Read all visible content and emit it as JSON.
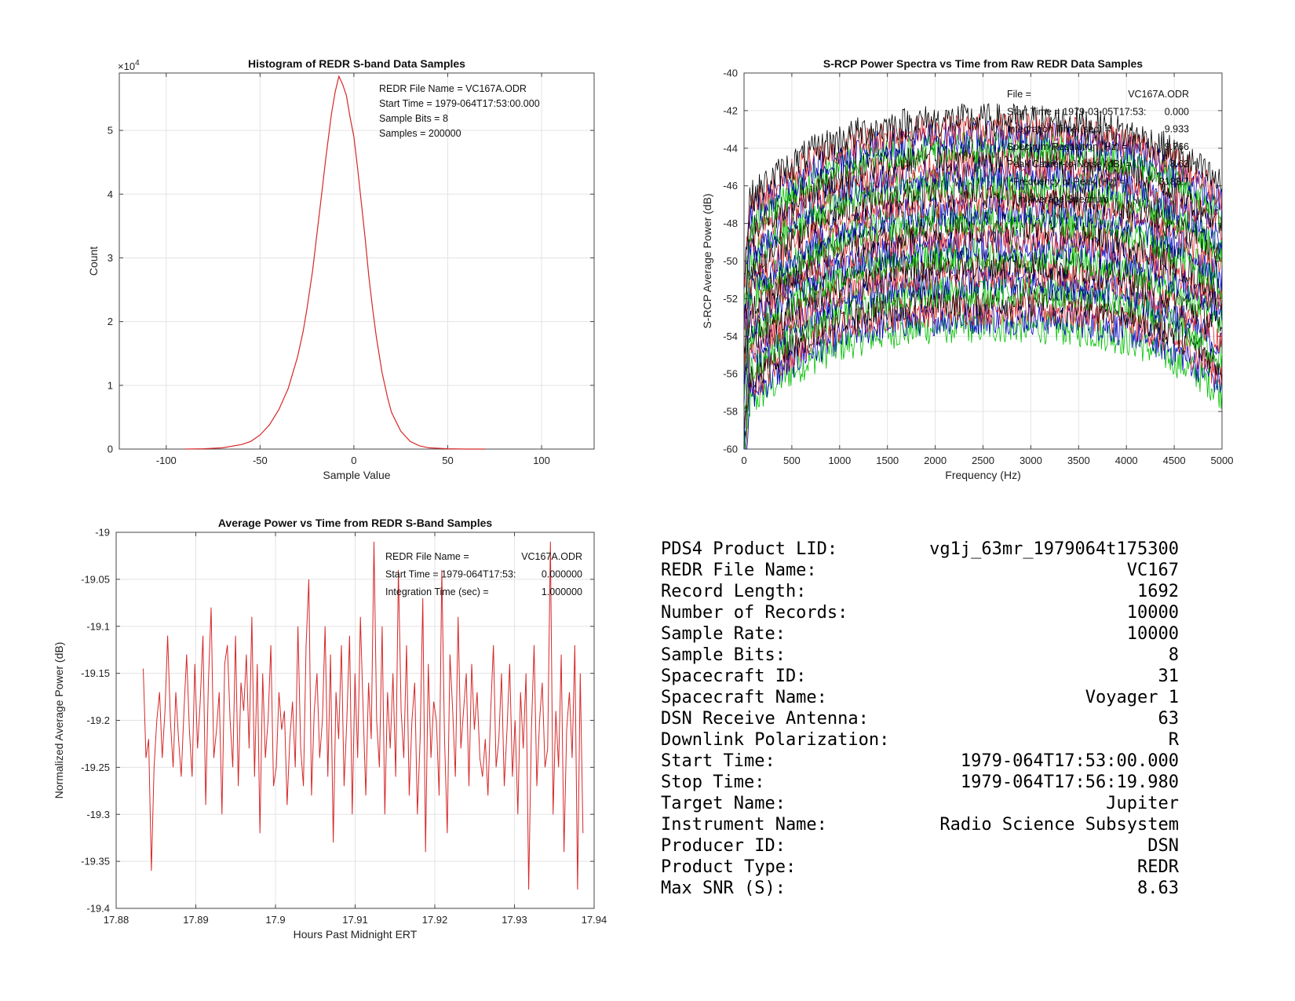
{
  "chart_data": [
    {
      "type": "line",
      "title": "Histogram of REDR S-band Data Samples",
      "xlabel": "Sample Value",
      "ylabel": "Count",
      "exponent_label": "×10",
      "exponent_power": "4",
      "xlim": [
        -125,
        128
      ],
      "ylim": [
        0,
        5.9
      ],
      "xticks": [
        -100,
        -50,
        0,
        50,
        100
      ],
      "yticks": [
        0,
        1,
        2,
        3,
        4,
        5
      ],
      "grid": true,
      "series": [
        {
          "color": "#d62728",
          "x": [
            -90,
            -80,
            -70,
            -60,
            -55,
            -50,
            -45,
            -40,
            -35,
            -30,
            -27,
            -25,
            -22,
            -20,
            -17,
            -15,
            -12,
            -10,
            -8,
            -6,
            -4,
            -2,
            0,
            2,
            4,
            6,
            8,
            10,
            12,
            15,
            18,
            20,
            25,
            30,
            35,
            40,
            50,
            60,
            70
          ],
          "y": [
            0.0,
            0.005,
            0.02,
            0.07,
            0.12,
            0.22,
            0.38,
            0.62,
            0.95,
            1.45,
            1.85,
            2.2,
            2.8,
            3.3,
            4.05,
            4.55,
            5.25,
            5.6,
            5.85,
            5.72,
            5.55,
            5.2,
            4.9,
            4.4,
            3.85,
            3.3,
            2.7,
            2.2,
            1.75,
            1.2,
            0.8,
            0.58,
            0.28,
            0.12,
            0.05,
            0.02,
            0.005,
            0.0,
            0.0
          ]
        }
      ],
      "annotations": [
        "REDR File Name = VC167A.ODR",
        "Start Time = 1979-064T17:53:00.000",
        "Sample Bits = 8",
        "Samples = 200000"
      ]
    },
    {
      "type": "line",
      "title": "S-RCP Power Spectra vs Time from Raw REDR Data Samples",
      "xlabel": "Frequency (Hz)",
      "ylabel": "S-RCP Average Power (dB)",
      "xlim": [
        0,
        5000
      ],
      "ylim": [
        -60,
        -40
      ],
      "xticks": [
        0,
        500,
        1000,
        1500,
        2000,
        2500,
        3000,
        3500,
        4000,
        4500,
        5000
      ],
      "yticks": [
        -60,
        -58,
        -56,
        -54,
        -52,
        -50,
        -48,
        -46,
        -44,
        -42,
        -40
      ],
      "grid": true,
      "spectra": {
        "count": 24,
        "colors": [
          "#00c000",
          "#0000c0",
          "#d62728",
          "#000000"
        ],
        "peak_level_range": [
          -53.5,
          -42.5
        ],
        "edge_drop_db": 4.5,
        "noise_db": 0.9
      },
      "annotations": [
        {
          "label": "File =",
          "value": "VC167A.ODR"
        },
        {
          "label": "Start Time = 1979-03-05T17:53:",
          "value": "0.000"
        },
        {
          "label": "Integration Time (sec) =",
          "value": "9.933"
        },
        {
          "label": "Spectrum Resolution (Hz) =",
          "value": "9.766"
        },
        {
          "label": "Peak Carrier-to-Noise (dB) =",
          "value": "8.63"
        },
        {
          "label": "Frequency of Peak (Hz) =",
          "value": "3183.7"
        },
        {
          "label": "in Average Spectrum",
          "value": ""
        }
      ]
    },
    {
      "type": "line",
      "title": "Average Power vs Time from REDR S-Band Samples",
      "xlabel": "Hours Past Midnight ERT",
      "ylabel": "Normalized Average Power (dB)",
      "xlim": [
        17.88,
        17.94
      ],
      "ylim": [
        -19.4,
        -19.0
      ],
      "xticks": [
        17.88,
        17.89,
        17.9,
        17.91,
        17.92,
        17.93,
        17.94
      ],
      "xtick_labels": [
        "17.88",
        "17.89",
        "17.9",
        "17.91",
        "17.92",
        "17.93",
        "17.94"
      ],
      "yticks": [
        -19.4,
        -19.35,
        -19.3,
        -19.25,
        -19.2,
        -19.15,
        -19.1,
        -19.05,
        -19.0
      ],
      "ytick_labels": [
        "-19.4",
        "-19.35",
        "-19.3",
        "-19.25",
        "-19.2",
        "-19.15",
        "-19.1",
        "-19.05",
        "-19"
      ],
      "grid": true,
      "series": [
        {
          "color": "#d62728",
          "x_start": 17.8834,
          "x_end": 17.9386,
          "y": [
            -19.145,
            -19.24,
            -19.22,
            -19.36,
            -19.25,
            -19.2,
            -19.17,
            -19.24,
            -19.19,
            -19.11,
            -19.2,
            -19.25,
            -19.17,
            -19.22,
            -19.26,
            -19.19,
            -19.13,
            -19.21,
            -19.26,
            -19.14,
            -19.23,
            -19.18,
            -19.11,
            -19.29,
            -19.16,
            -19.08,
            -19.24,
            -19.21,
            -19.17,
            -19.3,
            -19.14,
            -19.12,
            -19.2,
            -19.25,
            -19.11,
            -19.27,
            -19.16,
            -19.19,
            -19.13,
            -19.23,
            -19.09,
            -19.26,
            -19.14,
            -19.32,
            -19.15,
            -19.24,
            -19.2,
            -19.12,
            -19.27,
            -19.25,
            -19.17,
            -19.21,
            -19.19,
            -19.29,
            -19.22,
            -19.18,
            -19.25,
            -19.1,
            -19.23,
            -19.27,
            -19.12,
            -19.05,
            -19.28,
            -19.19,
            -19.15,
            -19.24,
            -19.2,
            -19.1,
            -19.26,
            -19.13,
            -19.33,
            -19.17,
            -19.22,
            -19.12,
            -19.27,
            -19.2,
            -19.11,
            -19.3,
            -19.15,
            -19.24,
            -19.09,
            -19.19,
            -19.28,
            -19.16,
            -19.22,
            -19.01,
            -19.2,
            -19.25,
            -19.1,
            -19.3,
            -19.17,
            -19.23,
            -19.15,
            -19.26,
            -19.04,
            -19.19,
            -19.24,
            -19.12,
            -19.28,
            -19.2,
            -19.16,
            -19.3,
            -19.22,
            -19.07,
            -19.34,
            -19.14,
            -19.24,
            -19.18,
            -19.2,
            -19.28,
            -19.04,
            -19.22,
            -19.32,
            -19.13,
            -19.19,
            -19.26,
            -19.09,
            -19.23,
            -19.19,
            -19.15,
            -19.27,
            -19.14,
            -19.21,
            -19.17,
            -19.24,
            -19.26,
            -19.22,
            -19.28,
            -19.19,
            -19.12,
            -19.25,
            -19.22,
            -19.15,
            -19.27,
            -19.21,
            -19.14,
            -19.26,
            -19.2,
            -19.3,
            -19.17,
            -19.23,
            -19.15,
            -19.38,
            -19.21,
            -19.12,
            -19.27,
            -19.2,
            -19.16,
            -19.25,
            -19.23,
            -19.01,
            -19.3,
            -19.19,
            -19.25,
            -19.13,
            -19.34,
            -19.21,
            -19.17,
            -19.24,
            -19.12,
            -19.38,
            -19.15,
            -19.32
          ]
        }
      ],
      "annotations": [
        {
          "label": "REDR File Name =",
          "value": "VC167A.ODR"
        },
        {
          "label": "Start Time = 1979-064T17:53:",
          "value": "0.000000"
        },
        {
          "label": "Integration Time (sec) =",
          "value": "1.000000"
        }
      ]
    }
  ],
  "info_table": [
    {
      "label": "PDS4 Product LID:",
      "value": "vg1j_63mr_1979064t175300"
    },
    {
      "label": "REDR File Name:",
      "value": "VC167"
    },
    {
      "label": "Record Length:",
      "value": "1692"
    },
    {
      "label": "Number of Records:",
      "value": "10000"
    },
    {
      "label": "Sample Rate:",
      "value": "10000"
    },
    {
      "label": "Sample Bits:",
      "value": "8"
    },
    {
      "label": "Spacecraft ID:",
      "value": "31"
    },
    {
      "label": "Spacecraft Name:",
      "value": "Voyager 1"
    },
    {
      "label": "DSN Receive Antenna:",
      "value": "63"
    },
    {
      "label": "Downlink Polarization:",
      "value": "R"
    },
    {
      "label": "Start Time:",
      "value": "1979-064T17:53:00.000"
    },
    {
      "label": "Stop Time:",
      "value": "1979-064T17:56:19.980"
    },
    {
      "label": "Target Name:",
      "value": "Jupiter"
    },
    {
      "label": "Instrument Name:",
      "value": "Radio Science Subsystem"
    },
    {
      "label": "Producer ID:",
      "value": "DSN"
    },
    {
      "label": "Product Type:",
      "value": "REDR"
    },
    {
      "label": "Max SNR (S):",
      "value": "8.63"
    }
  ]
}
